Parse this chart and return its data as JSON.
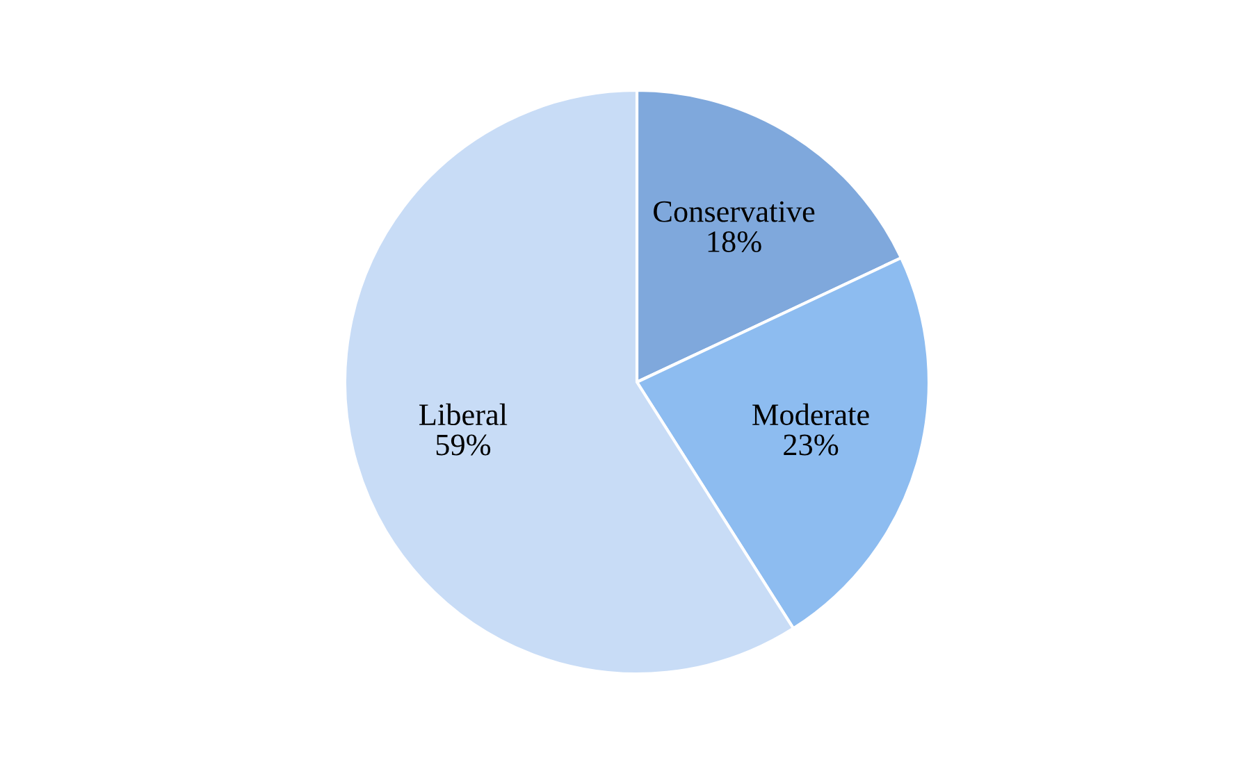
{
  "chart_data": {
    "type": "pie",
    "categories": [
      "Conservative",
      "Moderate",
      "Liberal"
    ],
    "values": [
      18,
      23,
      59
    ],
    "value_labels": [
      "18%",
      "23%",
      "59%"
    ],
    "colors": [
      "#7fa8dc",
      "#8dbcf0",
      "#c8dcf6"
    ],
    "legend": false
  }
}
